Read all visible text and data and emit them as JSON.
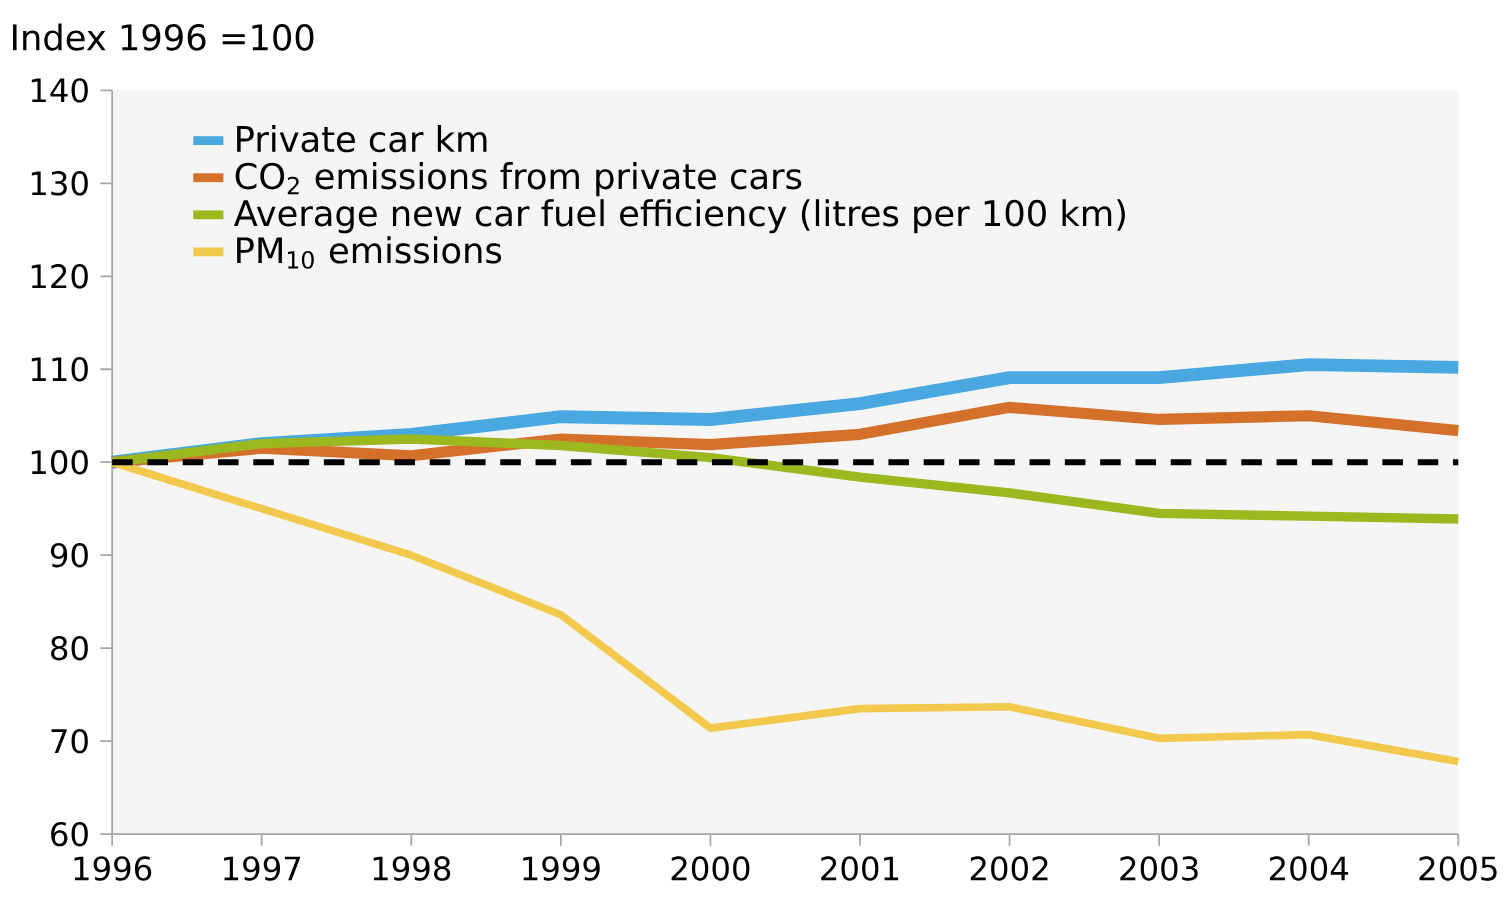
{
  "chart_data": {
    "type": "line",
    "ylabel": "Index 1996 =100",
    "x": [
      1996,
      1997,
      1998,
      1999,
      2000,
      2001,
      2002,
      2003,
      2004,
      2005
    ],
    "xlim": [
      1996,
      2005
    ],
    "xticks": [
      1996,
      1997,
      1998,
      1999,
      2000,
      2001,
      2002,
      2003,
      2004,
      2005
    ],
    "ylim": [
      60,
      140
    ],
    "yticks": [
      60,
      70,
      80,
      90,
      100,
      110,
      120,
      130,
      140
    ],
    "grid": false,
    "legend": "top left",
    "line_style": "solid",
    "marker": "none",
    "ref_lines": [
      {
        "axis": "y",
        "value": 100,
        "color": "#000000",
        "line_style": "dashed"
      }
    ],
    "series": [
      {
        "name": "Private car km",
        "color": "#4aa8e0",
        "values": [
          100,
          102,
          103,
          104.9,
          104.6,
          106.3,
          109.1,
          109.1,
          110.5,
          110.2
        ]
      },
      {
        "name": "CO$_{2}$ emissions from private cars",
        "color": "#d4702a",
        "values": [
          100,
          101.5,
          100.7,
          102.5,
          101.9,
          103,
          105.9,
          104.6,
          105,
          103.4
        ]
      },
      {
        "name": "Average new car fuel efficiency (litres per 100 km)",
        "color": "#9bb81f",
        "values": [
          100,
          102,
          102.5,
          101.8,
          100.5,
          98.4,
          96.7,
          94.5,
          94.2,
          93.9
        ]
      },
      {
        "name": "PM$_{10}$ emissions",
        "color": "#f2c94c",
        "values": [
          100,
          95,
          90,
          83.6,
          71.4,
          73.5,
          73.7,
          70.3,
          70.7,
          67.8
        ]
      }
    ]
  }
}
